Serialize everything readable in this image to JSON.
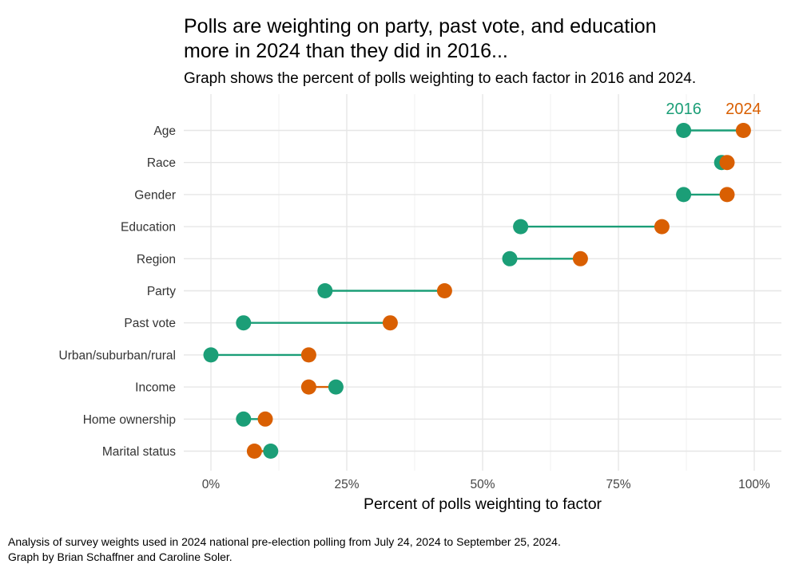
{
  "title_lines": [
    "Polls are weighting on party, past vote, and education",
    "more in 2024 than they did in 2016..."
  ],
  "subtitle": "Graph shows the percent of polls weighting to each factor in 2016 and 2024.",
  "caption_lines": [
    "Analysis of survey weights used in 2024 national pre-election polling from July 24, 2024 to September 25, 2024.",
    "Graph by Brian Schaffner and Caroline Soler."
  ],
  "colors": {
    "series_2016": "#1b9e77",
    "series_2024": "#d95f02"
  },
  "chart_data": {
    "type": "scatter",
    "style": "dumbbell",
    "title": "Polls are weighting on party, past vote, and education more in 2024 than they did in 2016...",
    "subtitle": "Graph shows the percent of polls weighting to each factor in 2016 and 2024.",
    "xlabel": "Percent of polls weighting to factor",
    "ylabel": "",
    "xlim": [
      0,
      100
    ],
    "x_ticks": [
      0,
      25,
      50,
      75,
      100
    ],
    "x_tick_labels": [
      "0%",
      "25%",
      "50%",
      "75%",
      "100%"
    ],
    "grid": true,
    "legend_placement": "top-right (direct labels)",
    "categories": [
      "Age",
      "Race",
      "Gender",
      "Education",
      "Region",
      "Party",
      "Past vote",
      "Urban/suburban/rural",
      "Income",
      "Home ownership",
      "Marital status"
    ],
    "series": [
      {
        "name": "2016",
        "color": "#1b9e77",
        "values": [
          87,
          94,
          87,
          57,
          55,
          21,
          6,
          0,
          23,
          6,
          11
        ]
      },
      {
        "name": "2024",
        "color": "#d95f02",
        "values": [
          98,
          95,
          95,
          83,
          68,
          43,
          33,
          18,
          18,
          10,
          8
        ]
      }
    ]
  }
}
